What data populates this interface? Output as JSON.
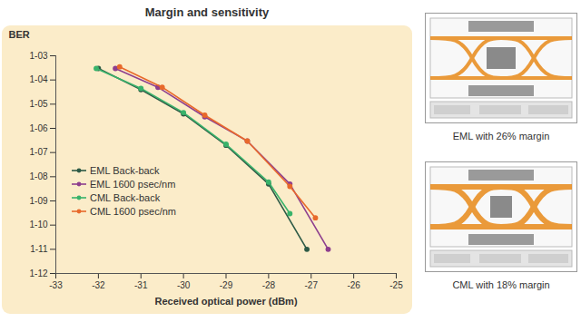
{
  "chart_data": {
    "type": "line",
    "title": "Margin and sensitivity",
    "x_label": "Received optical power (dBm)",
    "y_label": "BER",
    "log": "y",
    "grid": false,
    "legend": "bottom-left",
    "xlim": [
      -33,
      -25
    ],
    "xticks": [
      -33,
      -32,
      -31,
      -30,
      -29,
      -28,
      -27,
      -26,
      -25
    ],
    "ylim": [
      1e-12,
      0.001
    ],
    "yticks": [
      {
        "value": 0.001,
        "label": "1-03"
      },
      {
        "value": 0.0001,
        "label": "1-04"
      },
      {
        "value": 1e-05,
        "label": "1-05"
      },
      {
        "value": 1e-06,
        "label": "1-06"
      },
      {
        "value": 1e-07,
        "label": "1-07"
      },
      {
        "value": 1e-08,
        "label": "1-08"
      },
      {
        "value": 1e-09,
        "label": "1-09"
      },
      {
        "value": 1e-10,
        "label": "1-10"
      },
      {
        "value": 1e-11,
        "label": "1-11"
      },
      {
        "value": 1e-12,
        "label": "1-12"
      }
    ],
    "series": [
      {
        "name": "EML Back-back",
        "color": "#2d5a46",
        "marker": "circle",
        "x": [
          -32.0,
          -31.0,
          -30.0,
          -29.0,
          -28.0,
          -27.1
        ],
        "values": [
          0.0003,
          4e-05,
          4e-06,
          2e-07,
          5e-09,
          1e-11
        ]
      },
      {
        "name": "EML 1600 psec/nm",
        "color": "#8e3f8e",
        "marker": "circle",
        "x": [
          -31.6,
          -30.6,
          -29.5,
          -28.5,
          -27.5,
          -26.6
        ],
        "values": [
          0.0003,
          5e-05,
          3e-06,
          3e-07,
          5e-09,
          1e-11
        ]
      },
      {
        "name": "CML Back-back",
        "color": "#39b36b",
        "marker": "circle",
        "x": [
          -32.05,
          -31.0,
          -30.0,
          -29.0,
          -28.0,
          -27.5
        ],
        "values": [
          0.0003,
          4.5e-05,
          4.5e-06,
          2.2e-07,
          6e-09,
          3e-10
        ]
      },
      {
        "name": "CML 1600 psec/nm",
        "color": "#e8692b",
        "marker": "circle",
        "x": [
          -31.5,
          -30.5,
          -29.5,
          -28.5,
          -27.5,
          -26.9
        ],
        "values": [
          0.00035,
          5e-05,
          3.5e-06,
          3e-07,
          4e-09,
          2e-10
        ]
      }
    ],
    "annotations": [
      "EML with 26% margin",
      "CML with 18% margin"
    ]
  }
}
